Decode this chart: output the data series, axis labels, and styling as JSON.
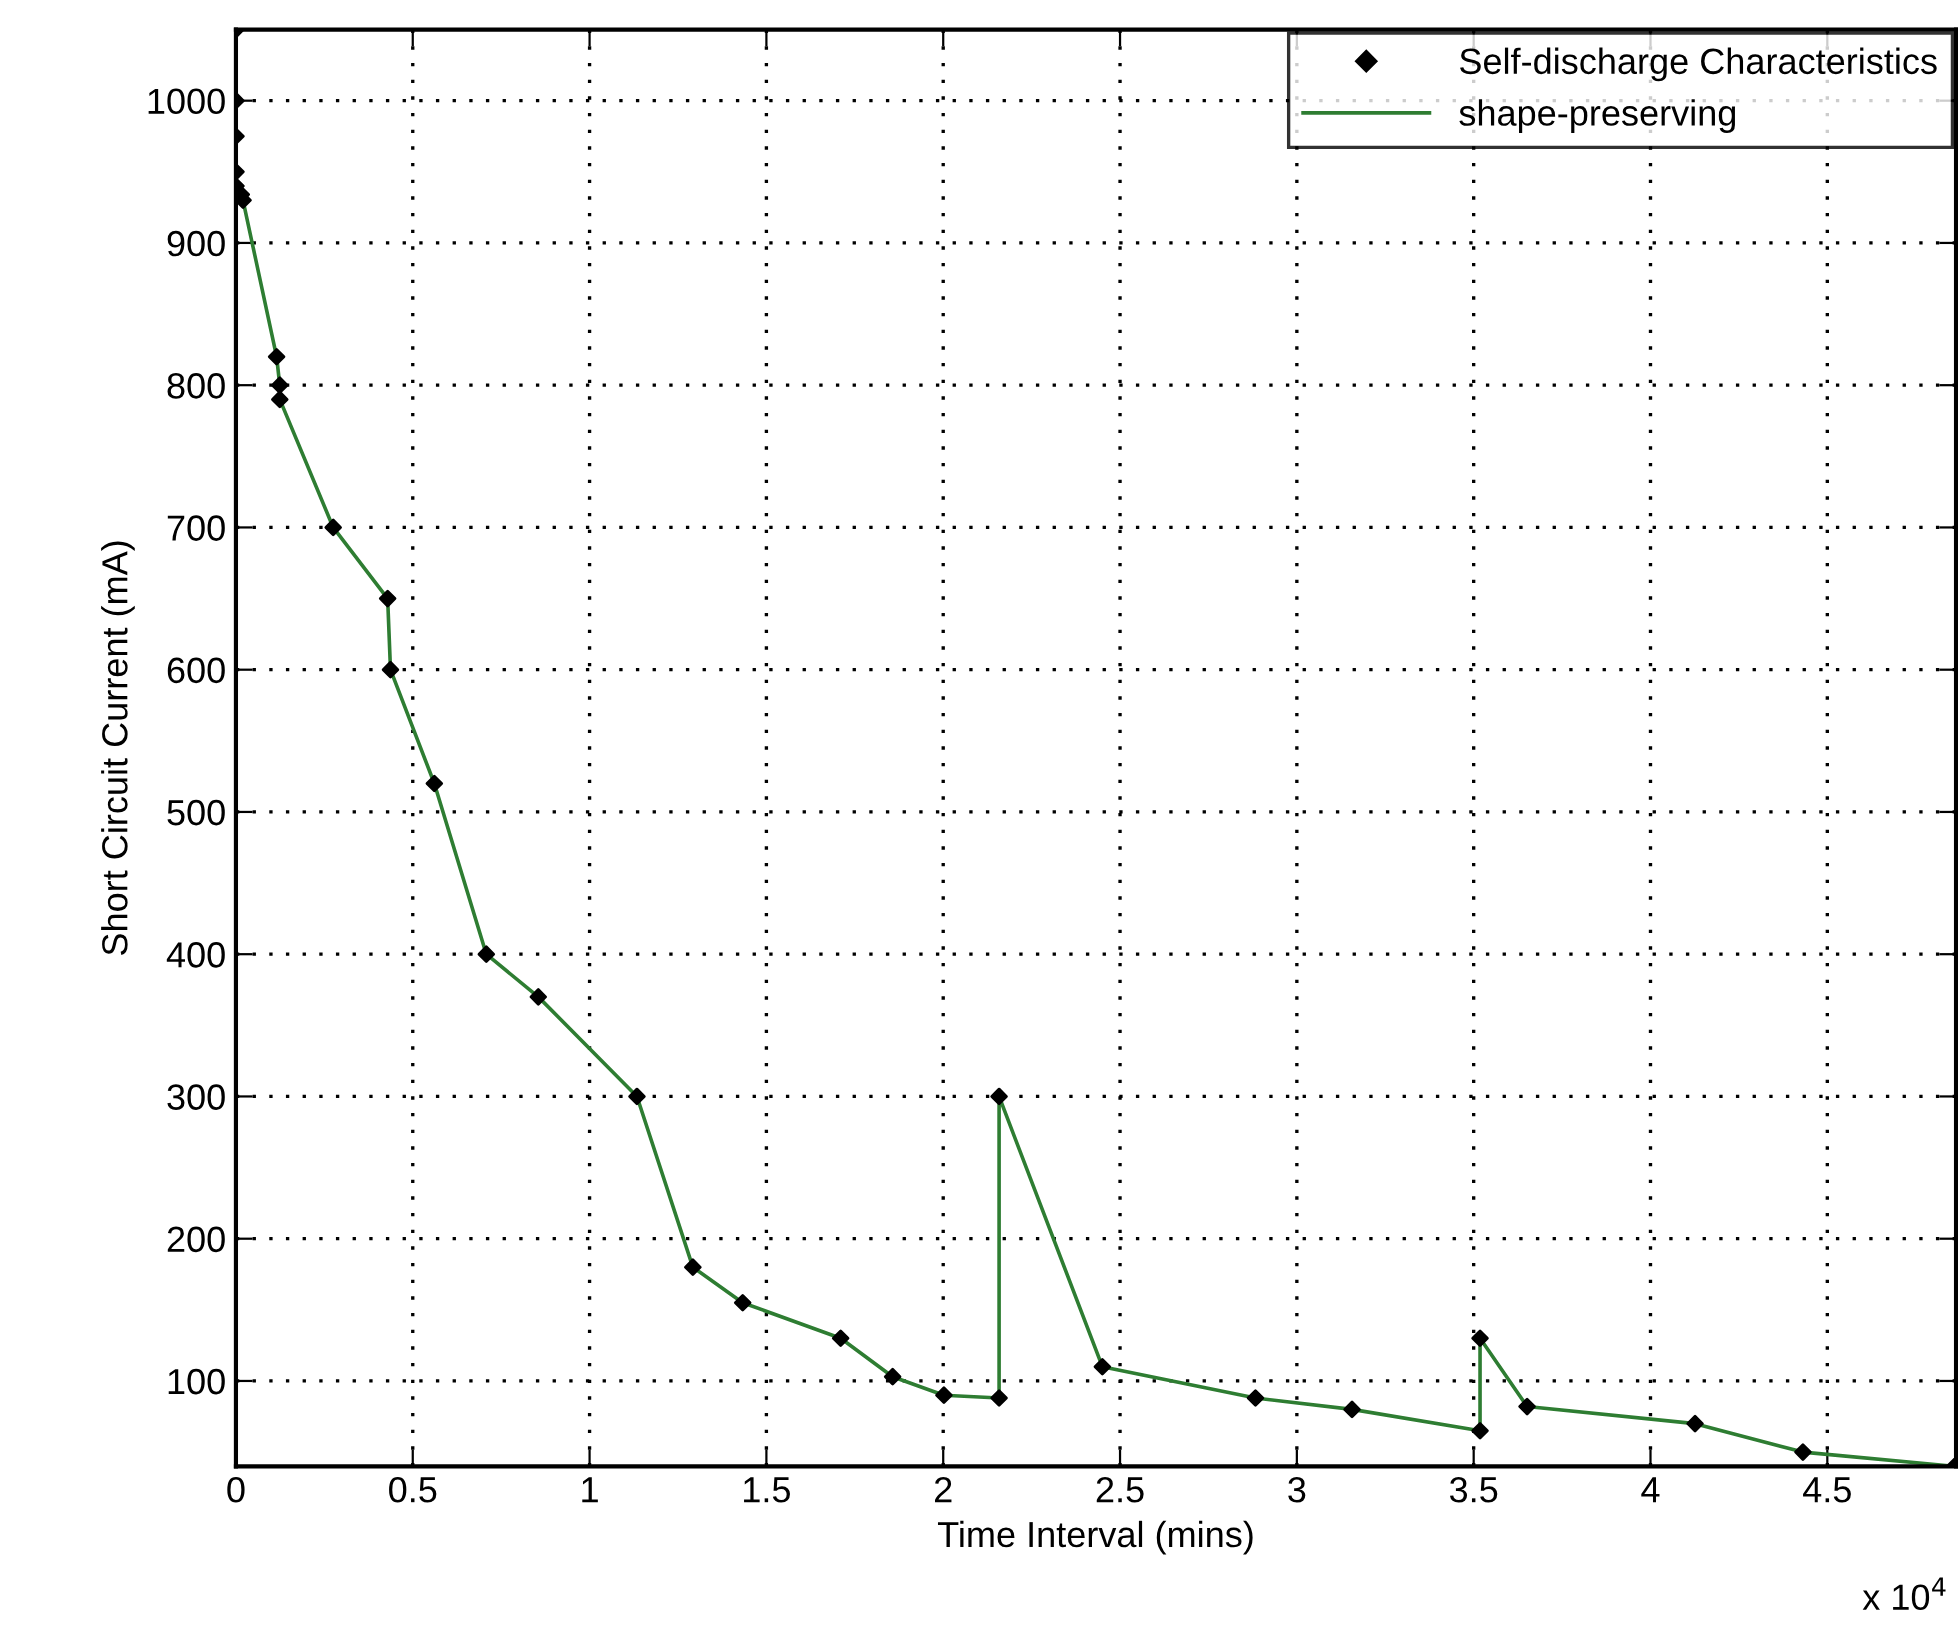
{
  "chart_data": {
    "type": "line",
    "xlabel": "Time Interval (mins)",
    "ylabel": "Short Circuit Current (mA)",
    "annotations": [
      "x 10$^{4}$"
    ],
    "x": [
      0,
      0,
      0,
      0,
      0,
      0.015,
      0.02,
      0.115,
      0.124,
      0.124,
      0.275,
      0.429,
      0.437,
      0.561,
      0.708,
      0.855,
      1.134,
      1.292,
      1.433,
      1.71,
      1.857,
      2.002,
      2.158,
      2.158,
      2.45,
      2.883,
      3.156,
      3.518,
      3.518,
      3.651,
      4.126,
      4.431,
      4.86
    ],
    "series": [
      {
        "name": "Self-discharge Characteristics",
        "type": "scatter",
        "color": "#000000",
        "marker": "diamond",
        "values": [
          1050,
          1000,
          975,
          950,
          940,
          934,
          930,
          820,
          800,
          790,
          700,
          650,
          600,
          520,
          400,
          370,
          300,
          180,
          155,
          130,
          103,
          90,
          88,
          300,
          110,
          88,
          80,
          65,
          130,
          82,
          70,
          50,
          40
        ]
      },
      {
        "name": "shape-preserving",
        "color": "#2e7d32",
        "line_style": "solid",
        "values": [
          null,
          null,
          null,
          null,
          null,
          934,
          930,
          820,
          800,
          790,
          700,
          650,
          600,
          520,
          400,
          370,
          300,
          180,
          155,
          130,
          103,
          90,
          88,
          300,
          110,
          88,
          80,
          65,
          130,
          82,
          70,
          50,
          40
        ]
      }
    ],
    "xlim": [
      0,
      4.864
    ],
    "ylim": [
      40,
      1050
    ],
    "xticks": [
      0,
      0.5,
      1,
      1.5,
      2,
      2.5,
      3,
      3.5,
      4,
      4.5
    ],
    "yticks": [
      100,
      200,
      300,
      400,
      500,
      600,
      700,
      800,
      900,
      1000
    ],
    "grid": true,
    "legend": "top right"
  }
}
